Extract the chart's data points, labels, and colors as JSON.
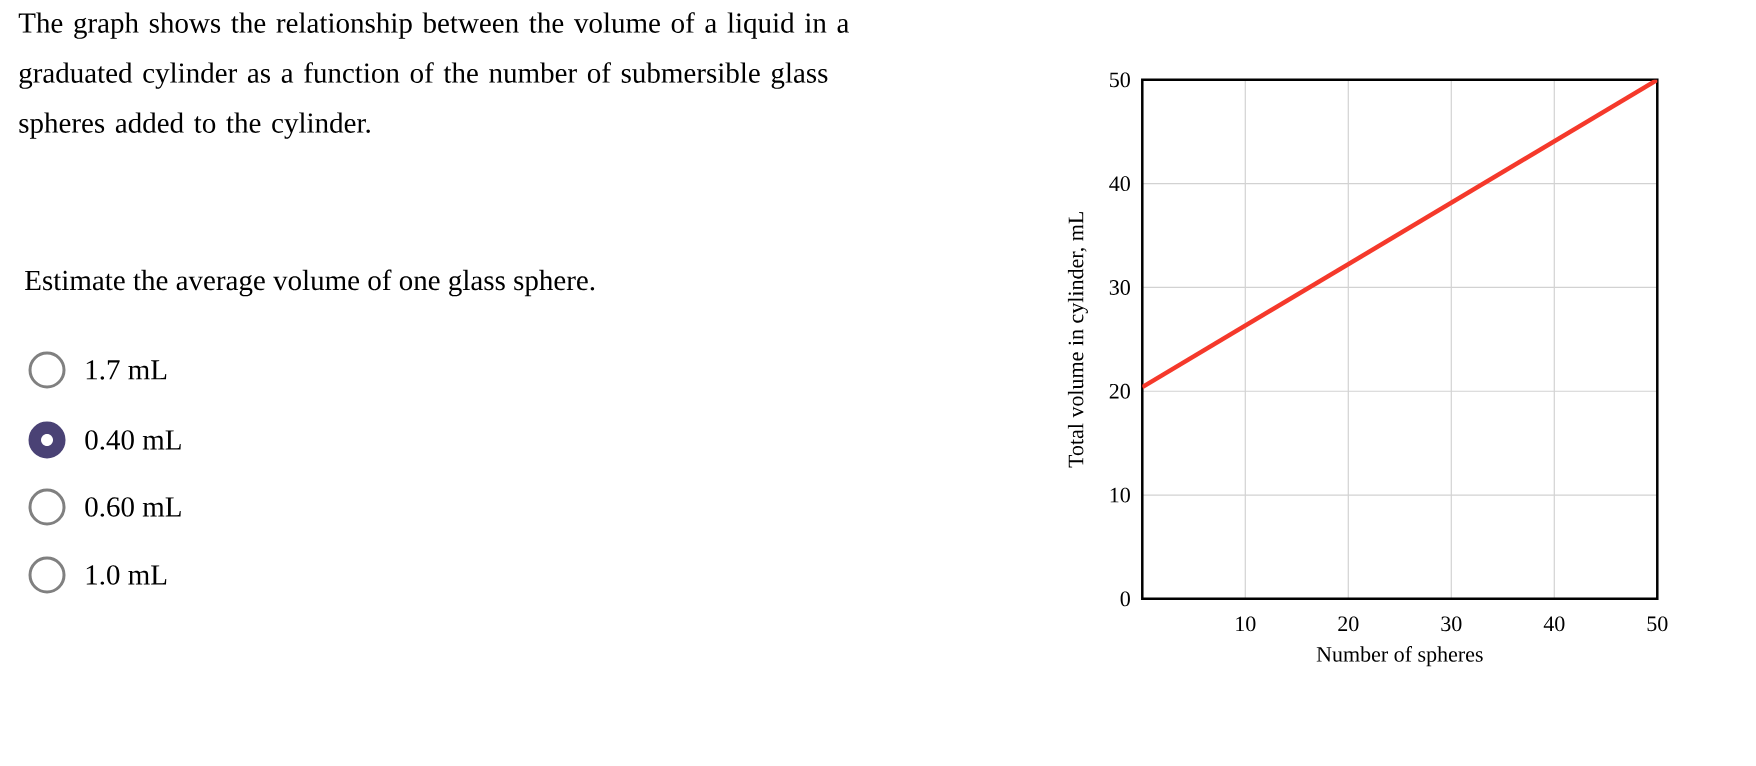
{
  "chart_data": {
    "type": "line",
    "xlabel": "Number of spheres",
    "ylabel": "Total volume in cylinder, mL",
    "x": [
      0,
      50
    ],
    "values": [
      20.4,
      50
    ],
    "color": "#f5392b",
    "xlim": [
      0,
      50
    ],
    "ylim": [
      0,
      50
    ],
    "xticks": [
      10,
      20,
      30,
      40,
      50
    ],
    "yticks": [
      0,
      10,
      20,
      30,
      40,
      50
    ],
    "grid": true,
    "annotations": [
      "The graph shows the relationship between the volume of a liquid in a graduated cylinder as a function of the number of submersible glass spheres added to the cylinder.",
      "Estimate the average volume of one glass sphere.",
      "1.7 mL",
      "0.40 mL",
      "0.60 mL",
      "1.0 mL"
    ]
  }
}
